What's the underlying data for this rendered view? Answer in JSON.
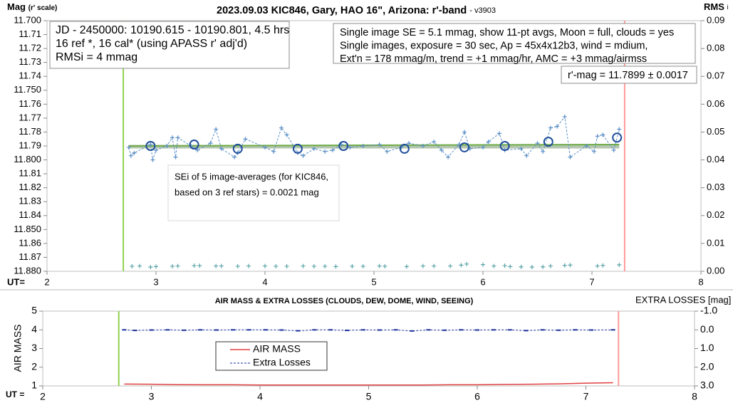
{
  "chart_data": [
    {
      "type": "line",
      "title": "2023.09.03 KIC846, Gary, HAO 16\", Arizona: r'-band",
      "subtitle": "- v3903",
      "ylabel": "Mag",
      "ylabel_note": "(r' scale)",
      "y2label": "RMS",
      "y2label_note": "i",
      "xlabel": "UT=",
      "xlim": [
        2,
        8
      ],
      "xticks": [
        2,
        3,
        4,
        5,
        6,
        7,
        8
      ],
      "ylim": [
        11.7,
        11.88
      ],
      "y_inverted": true,
      "yticks": [
        {
          "value": 11.7,
          "label": "11.700"
        },
        11.71,
        11.72,
        11.73,
        11.74,
        {
          "value": 11.75,
          "label": "11.750"
        },
        11.76,
        11.77,
        11.78,
        11.79,
        {
          "value": 11.8,
          "label": "11.800"
        },
        11.81,
        11.82,
        11.83,
        11.84,
        {
          "value": 11.85,
          "label": "11.850"
        },
        11.86,
        11.87,
        {
          "value": 11.88,
          "label": "11.880"
        }
      ],
      "y2lim": [
        0,
        0.09
      ],
      "y2ticks": [
        {
          "value": 0,
          "label": "0.00"
        },
        0.01,
        0.02,
        0.03,
        0.04,
        0.05,
        0.06,
        0.07,
        0.08,
        0.09
      ],
      "vlines": [
        {
          "x": 2.7,
          "color": "#92d050"
        },
        {
          "x": 7.3,
          "color": "#ff9999"
        }
      ],
      "annotations": [
        {
          "lines": [
            "JD - 2450000: 10190.615 - 10190.801, 4.5 hrs",
            "16 ref *, 16 cal* (using APASS r' adj'd)",
            "RMSi = 4 mmag"
          ]
        },
        {
          "lines": [
            "Single image SE = 5.1 mmag, show  11-pt avgs, Moon = full, clouds = yes",
            "Single images, exposure = 30 sec, Ap = 45x4x12b3, wind = mdium,",
            "Ext'n = 178 mmag/m, trend = +1  mmag/hr, AMC = +3 mmag/airmss"
          ]
        },
        {
          "lines": [
            "r'-mag = 11.7899 ± 0.0017"
          ]
        },
        {
          "lines": [
            "SEi of 5 image-averages (for KIC846,",
            "based on 3 ref stars) = 0.0021 mag"
          ]
        }
      ],
      "series": [
        {
          "color": "#b4c6b0",
          "line": true,
          "width": 5,
          "x": [
            2.75,
            7.25
          ],
          "values": [
            11.7905,
            11.7905
          ]
        },
        {
          "color": "#70ad47",
          "line": true,
          "width": 2,
          "x": [
            2.75,
            7.25
          ],
          "values": [
            11.79,
            11.789
          ]
        },
        {
          "color": "#5b8fc7",
          "line": true,
          "dashed": true,
          "marker": "plus",
          "x": [
            2.75,
            2.77,
            2.8,
            2.95,
            2.97,
            3.0,
            3.1,
            3.15,
            3.18,
            3.2,
            3.32,
            3.38,
            3.5,
            3.55,
            3.6,
            3.72,
            3.75,
            3.82,
            4.0,
            4.08,
            4.15,
            4.2,
            4.3,
            4.35,
            4.45,
            4.55,
            4.62,
            4.7,
            4.78,
            4.9,
            5.05,
            5.12,
            5.25,
            5.32,
            5.45,
            5.55,
            5.62,
            5.68,
            5.78,
            5.83,
            5.88,
            6.0,
            6.05,
            6.15,
            6.2,
            6.35,
            6.4,
            6.5,
            6.55,
            6.62,
            6.68,
            6.75,
            6.8,
            6.95,
            7.02,
            7.05,
            7.1,
            7.2,
            7.25
          ],
          "values": [
            11.791,
            11.797,
            11.795,
            11.789,
            11.8,
            11.793,
            11.79,
            11.784,
            11.798,
            11.784,
            11.79,
            11.793,
            11.788,
            11.778,
            11.792,
            11.798,
            11.795,
            11.785,
            11.791,
            11.794,
            11.777,
            11.782,
            11.795,
            11.797,
            11.792,
            11.794,
            11.793,
            11.789,
            11.791,
            11.79,
            11.789,
            11.794,
            11.791,
            11.788,
            11.79,
            11.787,
            11.793,
            11.798,
            11.789,
            11.78,
            11.792,
            11.791,
            11.787,
            11.781,
            11.793,
            11.792,
            11.797,
            11.788,
            11.794,
            11.777,
            11.776,
            11.769,
            11.798,
            11.79,
            11.794,
            11.783,
            11.782,
            11.793,
            11.778
          ]
        },
        {
          "color": "#1f4e9a",
          "marker": "circle",
          "x": [
            2.95,
            3.35,
            3.75,
            4.3,
            4.72,
            5.28,
            5.83,
            6.2,
            6.6,
            7.23
          ],
          "values": [
            11.79,
            11.789,
            11.792,
            11.792,
            11.79,
            11.792,
            11.791,
            11.79,
            11.787,
            11.784
          ]
        },
        {
          "color": "#5ba3a8",
          "marker": "plus",
          "axis": "y2",
          "x": [
            2.78,
            2.85,
            2.95,
            3.0,
            3.15,
            3.2,
            3.35,
            3.4,
            3.55,
            3.6,
            3.75,
            3.85,
            4.0,
            4.1,
            4.2,
            4.35,
            4.45,
            4.55,
            4.65,
            4.8,
            4.9,
            5.05,
            5.1,
            5.3,
            5.45,
            5.55,
            5.7,
            5.8,
            5.85,
            6.0,
            6.1,
            6.2,
            6.25,
            6.35,
            6.45,
            6.55,
            6.62,
            6.75,
            6.8,
            7.05,
            7.1,
            7.25
          ],
          "values": [
            0.0018,
            0.0019,
            0.0015,
            0.0017,
            0.0018,
            0.0019,
            0.002,
            0.002,
            0.0019,
            0.0019,
            0.0018,
            0.0019,
            0.0019,
            0.0018,
            0.0018,
            0.0019,
            0.0018,
            0.0018,
            0.0017,
            0.0018,
            0.0018,
            0.0019,
            0.0018,
            0.0017,
            0.0019,
            0.0019,
            0.0019,
            0.0022,
            0.0026,
            0.0024,
            0.0019,
            0.002,
            0.0017,
            0.0016,
            0.0015,
            0.0016,
            0.0019,
            0.0021,
            0.0022,
            0.0019,
            0.0021,
            0.0023
          ]
        }
      ]
    },
    {
      "type": "line",
      "title": "AIR MASS & EXTRA LOSSES (CLOUDS, DEW, DOME, WIND, SEEING)",
      "ylabel": "AIR MASS",
      "y2label": "EXTRA LOSSES [mag]",
      "xlabel": "UT =",
      "xlim": [
        2,
        8
      ],
      "xticks": [
        2,
        3,
        4,
        5,
        6,
        7,
        8
      ],
      "ylim": [
        1,
        5
      ],
      "yticks": [
        1,
        2,
        3,
        4,
        5
      ],
      "y2lim": [
        -1,
        3
      ],
      "y2_inverted": true,
      "y2ticks": [
        {
          "value": -1,
          "label": "-1.0"
        },
        {
          "value": 0,
          "label": "0.0"
        },
        {
          "value": 1,
          "label": "1.0"
        },
        {
          "value": 2,
          "label": "2.0"
        },
        {
          "value": 3,
          "label": "3.0"
        }
      ],
      "vlines": [
        {
          "x": 2.7,
          "color": "#92d050"
        },
        {
          "x": 7.3,
          "color": "#ff9999"
        }
      ],
      "legend": true,
      "series": [
        {
          "name": "AIR MASS",
          "color": "#e04040",
          "line": true,
          "width": 1.5,
          "x": [
            2.75,
            3.0,
            3.25,
            3.5,
            3.75,
            4.0,
            4.25,
            4.5,
            4.75,
            5.0,
            5.25,
            5.5,
            5.75,
            6.0,
            6.25,
            6.5,
            6.75,
            7.0,
            7.25
          ],
          "values": [
            1.1,
            1.09,
            1.07,
            1.06,
            1.06,
            1.05,
            1.05,
            1.05,
            1.05,
            1.05,
            1.05,
            1.05,
            1.06,
            1.06,
            1.08,
            1.09,
            1.11,
            1.15,
            1.17
          ]
        },
        {
          "name": "Extra Losses",
          "color": "#1a2f9a",
          "line": true,
          "dashed": true,
          "marker": "dash",
          "axis": "y2",
          "x": [
            2.75,
            2.85,
            3.0,
            3.15,
            3.3,
            3.45,
            3.6,
            3.75,
            3.9,
            4.05,
            4.2,
            4.35,
            4.5,
            4.65,
            4.8,
            4.95,
            5.1,
            5.25,
            5.4,
            5.55,
            5.7,
            5.85,
            6.0,
            6.15,
            6.3,
            6.45,
            6.6,
            6.75,
            6.9,
            7.05,
            7.25
          ],
          "values": [
            0.0,
            0.03,
            0.01,
            0.0,
            0.02,
            0.0,
            0.01,
            0.0,
            0.0,
            0.0,
            0.01,
            0.05,
            0.0,
            0.0,
            0.03,
            0.0,
            0.01,
            0.0,
            0.06,
            0.0,
            0.02,
            0.0,
            0.01,
            0.0,
            0.0,
            0.04,
            0.0,
            0.02,
            0.0,
            0.01,
            0.0
          ]
        }
      ]
    }
  ]
}
